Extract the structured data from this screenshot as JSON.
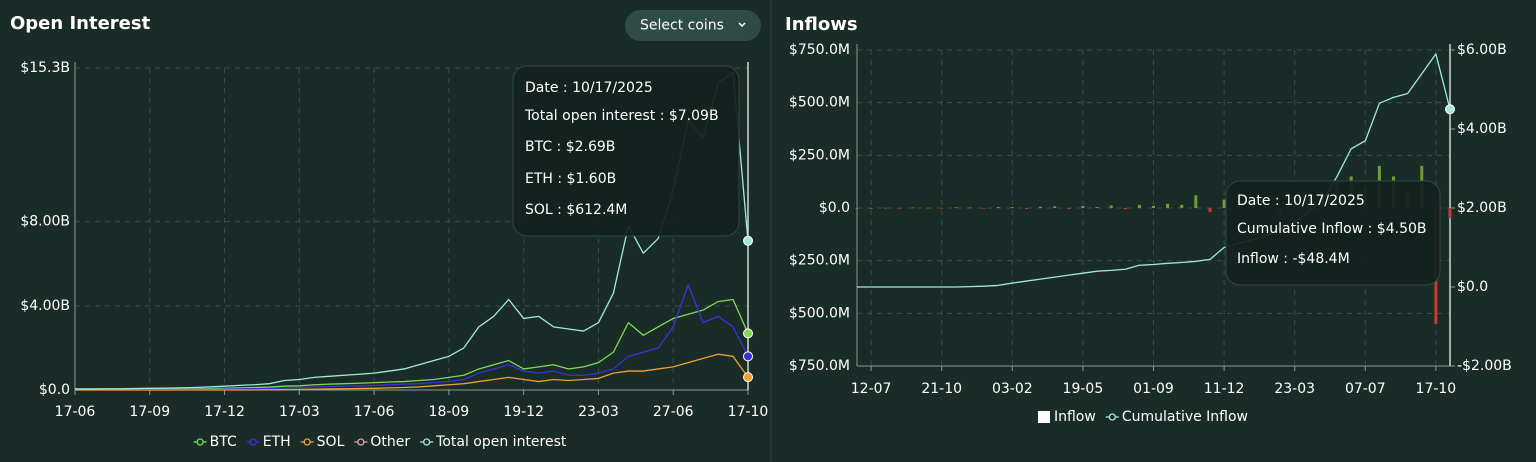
{
  "chart_data": [
    {
      "type": "line",
      "title": "Open Interest",
      "button": "Select coins",
      "categories": [
        "17-06",
        null,
        null,
        null,
        null,
        "17-09",
        null,
        null,
        null,
        null,
        "17-12",
        null,
        null,
        null,
        null,
        "17-03",
        null,
        null,
        null,
        null,
        "17-06",
        null,
        null,
        null,
        null,
        "18-09",
        null,
        null,
        null,
        null,
        "19-12",
        null,
        null,
        null,
        null,
        "23-03",
        null,
        null,
        null,
        null,
        "27-06",
        null,
        null,
        null,
        null,
        "17-10"
      ],
      "series": [
        {
          "name": "BTC",
          "color": "#7ed957",
          "values": [
            0.02,
            0.02,
            0.03,
            0.03,
            0.03,
            0.04,
            0.04,
            0.05,
            0.06,
            0.07,
            0.08,
            0.1,
            0.12,
            0.14,
            0.18,
            0.2,
            0.25,
            0.28,
            0.3,
            0.32,
            0.35,
            0.38,
            0.4,
            0.45,
            0.5,
            0.6,
            0.7,
            1.0,
            1.2,
            1.4,
            1.0,
            1.1,
            1.2,
            1.0,
            1.1,
            1.3,
            1.8,
            3.2,
            2.6,
            3.0,
            3.4,
            3.6,
            3.8,
            4.2,
            4.3,
            2.69
          ]
        },
        {
          "name": "ETH",
          "color": "#3b30d9",
          "values": [
            0.01,
            0.01,
            0.01,
            0.01,
            0.01,
            0.02,
            0.02,
            0.02,
            0.03,
            0.03,
            0.04,
            0.05,
            0.06,
            0.07,
            0.1,
            0.12,
            0.15,
            0.17,
            0.18,
            0.2,
            0.22,
            0.25,
            0.28,
            0.3,
            0.35,
            0.4,
            0.5,
            0.8,
            1.0,
            1.2,
            0.9,
            0.8,
            0.9,
            0.7,
            0.7,
            0.8,
            1.0,
            1.6,
            1.8,
            2.0,
            3.0,
            5.0,
            3.2,
            3.5,
            3.0,
            1.6
          ]
        },
        {
          "name": "SOL",
          "color": "#f0a030",
          "values": [
            0,
            0,
            0,
            0,
            0,
            0,
            0,
            0,
            0,
            0,
            0,
            0,
            0,
            0.01,
            0.02,
            0.03,
            0.04,
            0.05,
            0.06,
            0.07,
            0.08,
            0.1,
            0.12,
            0.15,
            0.2,
            0.25,
            0.3,
            0.4,
            0.5,
            0.6,
            0.5,
            0.4,
            0.5,
            0.45,
            0.5,
            0.55,
            0.8,
            0.9,
            0.9,
            1.0,
            1.1,
            1.3,
            1.5,
            1.7,
            1.6,
            0.6124
          ]
        },
        {
          "name": "Other",
          "color": "#d9a5b3",
          "values": [
            null,
            null,
            null,
            null,
            null,
            null,
            null,
            null,
            null,
            null,
            null,
            null,
            null,
            null,
            null,
            null,
            null,
            null,
            null,
            null,
            null,
            null,
            null,
            null,
            null,
            null,
            null,
            null,
            null,
            null,
            null,
            null,
            null,
            null,
            null,
            null,
            null,
            null,
            null,
            null,
            null,
            null,
            null,
            null,
            null,
            null
          ]
        },
        {
          "name": "Total open interest",
          "color": "#a3ead6",
          "values": [
            0.05,
            0.05,
            0.06,
            0.06,
            0.07,
            0.08,
            0.09,
            0.1,
            0.12,
            0.15,
            0.18,
            0.22,
            0.25,
            0.3,
            0.45,
            0.5,
            0.6,
            0.65,
            0.7,
            0.75,
            0.8,
            0.9,
            1.0,
            1.2,
            1.4,
            1.6,
            2.0,
            3.0,
            3.5,
            4.3,
            3.4,
            3.5,
            3.0,
            2.9,
            2.8,
            3.2,
            4.6,
            7.8,
            6.5,
            7.2,
            9.5,
            12.8,
            12.0,
            14.6,
            15.1,
            7.09
          ]
        }
      ],
      "ylim": [
        0,
        15.3
      ],
      "yticks": [
        {
          "value": 0,
          "label": "$0.0"
        },
        {
          "value": 4,
          "label": "$4.00B"
        },
        {
          "value": 8,
          "label": "$8.00B"
        },
        {
          "value": 15.3,
          "label": "$15.3B"
        }
      ],
      "grid": true,
      "tooltip": {
        "lines": [
          "Date : 10/17/2025",
          "Total open interest : $7.09B",
          "BTC : $2.69B",
          "ETH : $1.60B",
          "SOL : $612.4M"
        ],
        "colors": [
          "#ffffff",
          "#a3ead6",
          "#7ed957",
          "#3b30d9",
          "#f0a030"
        ]
      }
    },
    {
      "type": "bar",
      "title": "Inflows",
      "categories": [
        null,
        "12-07",
        null,
        null,
        null,
        null,
        "21-10",
        null,
        null,
        null,
        null,
        "03-02",
        null,
        null,
        null,
        null,
        "19-05",
        null,
        null,
        null,
        null,
        "01-09",
        null,
        null,
        null,
        null,
        "11-12",
        null,
        null,
        null,
        null,
        "23-03",
        null,
        null,
        null,
        null,
        "07-07",
        null,
        null,
        null,
        null,
        "17-10",
        null
      ],
      "series": [
        {
          "name": "Inflow",
          "type": "bar",
          "color": "#6e9c3c",
          "negative_color": "#c23b36",
          "values": [
            0,
            0,
            1,
            -1,
            2,
            1,
            -2,
            3,
            2,
            -3,
            5,
            4,
            -5,
            6,
            8,
            -4,
            10,
            5,
            12,
            -6,
            15,
            10,
            20,
            15,
            60,
            -20,
            40,
            50,
            30,
            20,
            -30,
            60,
            80,
            50,
            120,
            150,
            100,
            200,
            150,
            80,
            200,
            -550,
            -48.4
          ]
        },
        {
          "name": "Cumulative Inflow",
          "type": "line",
          "axis": "y2",
          "color": "#a3ead6",
          "values": [
            0,
            0,
            0,
            0,
            0,
            0,
            0,
            0,
            0.01,
            0.02,
            0.04,
            0.1,
            0.15,
            0.2,
            0.25,
            0.3,
            0.35,
            0.4,
            0.42,
            0.45,
            0.55,
            0.57,
            0.6,
            0.62,
            0.65,
            0.7,
            1.0,
            1.1,
            1.2,
            1.3,
            1.5,
            1.65,
            1.9,
            2.2,
            2.8,
            3.5,
            3.7,
            4.65,
            4.8,
            4.9,
            5.4,
            5.9,
            4.5
          ]
        }
      ],
      "ylim": [
        -750,
        750
      ],
      "yticks": [
        {
          "value": -750,
          "label": "$750.0M"
        },
        {
          "value": -500,
          "label": "$500.0M"
        },
        {
          "value": -250,
          "label": "$250.0M"
        },
        {
          "value": 0,
          "label": "$0.0"
        },
        {
          "value": 250,
          "label": "$250.0M"
        },
        {
          "value": 500,
          "label": "$500.0M"
        },
        {
          "value": 750,
          "label": "$750.0M"
        }
      ],
      "y2lim": [
        -2,
        6
      ],
      "y2ticks": [
        {
          "value": -2,
          "label": "-$2.00B"
        },
        {
          "value": 0,
          "label": "$0.0"
        },
        {
          "value": 2,
          "label": "$2.00B"
        },
        {
          "value": 4,
          "label": "$4.00B"
        },
        {
          "value": 6,
          "label": "$6.00B"
        }
      ],
      "grid": true,
      "tooltip": {
        "lines": [
          "Date : 10/17/2025",
          "Cumulative Inflow : $4.50B",
          "Inflow : -$48.4M"
        ],
        "colors": [
          "#ffffff",
          "#a3ead6",
          "#ffffff"
        ]
      }
    }
  ]
}
